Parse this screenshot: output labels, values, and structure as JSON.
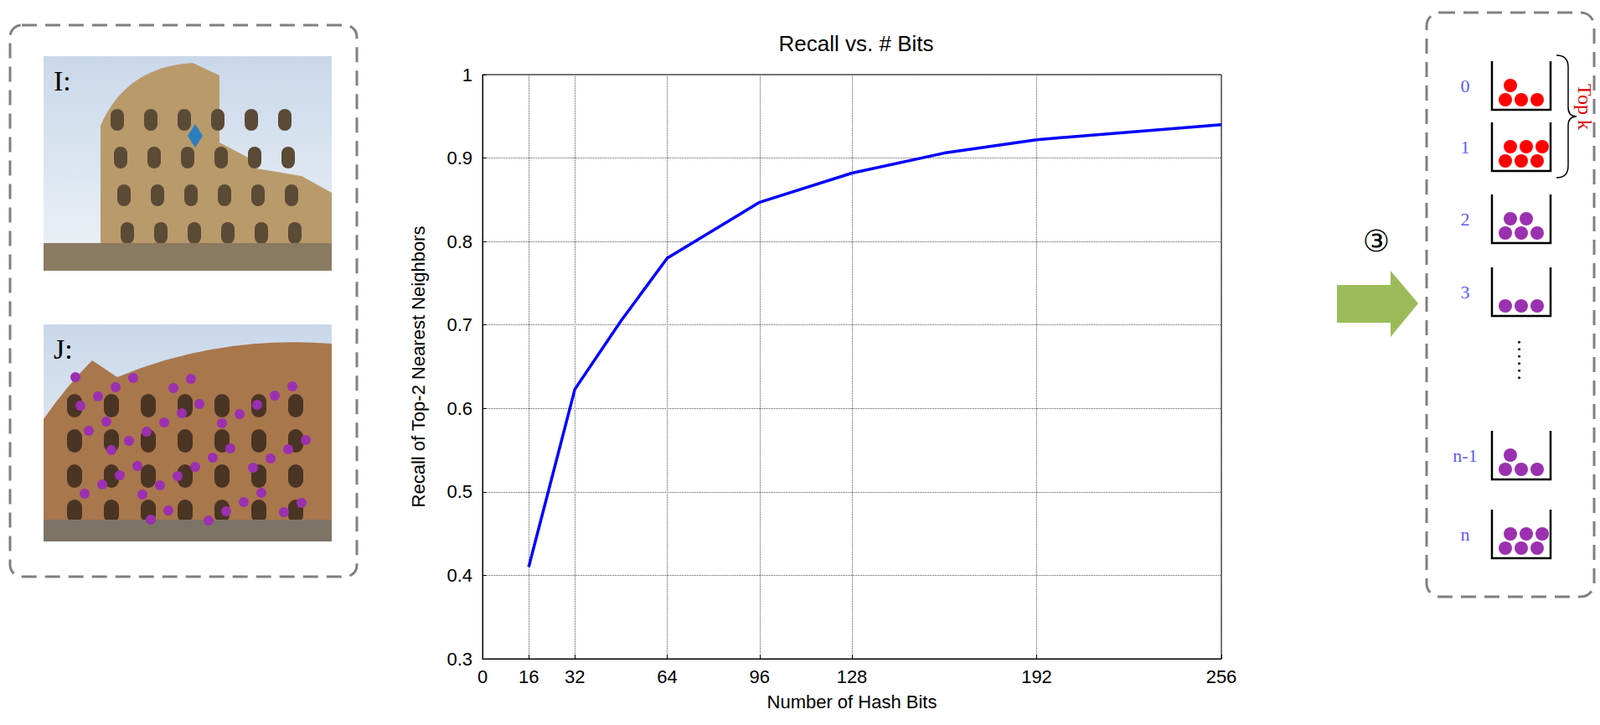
{
  "chart_data": {
    "type": "line",
    "title": "Recall vs. # Bits",
    "x_label": "Number of Hash Bits",
    "y_label": "Recall of Top-2 Nearest Neighbors",
    "x": [
      16,
      32,
      48,
      64,
      96,
      128,
      160,
      192,
      256
    ],
    "values": [
      0.41,
      0.623,
      0.705,
      0.78,
      0.847,
      0.882,
      0.906,
      0.922,
      0.94
    ],
    "color": "#0000ff",
    "xlim": [
      0,
      256
    ],
    "xticks": [
      0,
      16,
      32,
      64,
      96,
      128,
      192,
      256
    ],
    "ylim": [
      0.3,
      1
    ],
    "yticks": [
      0.3,
      0.4,
      0.5,
      0.6,
      0.7,
      0.8,
      0.9,
      1
    ],
    "grid": true
  },
  "left_panel": {
    "images": [
      {
        "label": "I:"
      },
      {
        "label": "J:"
      }
    ]
  },
  "right_panel": {
    "step": "③",
    "buckets": [
      "0",
      "1",
      "2",
      "3",
      "n-1",
      "n"
    ],
    "ellipsis": "......",
    "bracket": "Top k"
  }
}
